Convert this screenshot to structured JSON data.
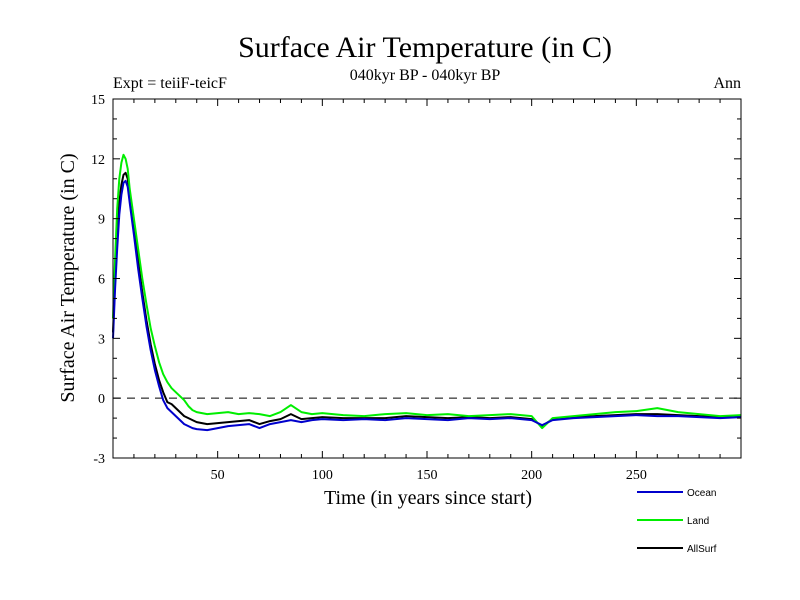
{
  "chart_data": {
    "type": "line",
    "title": "Surface Air Temperature (in C)",
    "subtitle": "040kyr BP - 040kyr BP",
    "left_label": "Expt = teiiF-teicF",
    "right_label": "Ann",
    "xlabel": "Time (in years since start)",
    "ylabel": "Surface Air Temperature (in C)",
    "xlim": [
      0,
      300
    ],
    "ylim": [
      -3,
      15
    ],
    "xticks": [
      50,
      100,
      150,
      200,
      250
    ],
    "yticks": [
      -3,
      0,
      3,
      6,
      9,
      12,
      15
    ],
    "reference_line": 0,
    "legend_position": "bottom-right",
    "series": [
      {
        "name": "Ocean",
        "color": "#0000cc",
        "x": [
          0,
          1,
          2,
          3,
          4,
          5,
          6,
          7,
          8,
          10,
          12,
          14,
          16,
          18,
          20,
          22,
          24,
          26,
          28,
          30,
          32,
          34,
          36,
          38,
          40,
          45,
          50,
          55,
          60,
          65,
          70,
          75,
          80,
          85,
          90,
          95,
          100,
          110,
          120,
          130,
          140,
          150,
          160,
          170,
          180,
          190,
          200,
          205,
          210,
          220,
          230,
          240,
          250,
          260,
          270,
          280,
          290,
          300
        ],
        "values": [
          3,
          5.5,
          7.5,
          9.2,
          10.2,
          10.8,
          10.9,
          10.6,
          9.8,
          8.2,
          6.5,
          5,
          3.6,
          2.4,
          1.4,
          0.6,
          -0.1,
          -0.5,
          -0.7,
          -0.9,
          -1.1,
          -1.3,
          -1.4,
          -1.5,
          -1.55,
          -1.6,
          -1.5,
          -1.4,
          -1.35,
          -1.3,
          -1.5,
          -1.3,
          -1.2,
          -1.1,
          -1.2,
          -1.1,
          -1.05,
          -1.1,
          -1.05,
          -1.1,
          -1.0,
          -1.05,
          -1.1,
          -1.0,
          -1.05,
          -1.0,
          -1.1,
          -1.35,
          -1.1,
          -1.0,
          -0.95,
          -0.9,
          -0.85,
          -0.9,
          -0.9,
          -0.95,
          -1.0,
          -0.95
        ]
      },
      {
        "name": "Land",
        "color": "#00ee00",
        "x": [
          0,
          1,
          2,
          3,
          4,
          5,
          6,
          7,
          8,
          10,
          12,
          14,
          16,
          18,
          20,
          22,
          24,
          26,
          28,
          30,
          32,
          34,
          36,
          38,
          40,
          45,
          50,
          55,
          60,
          65,
          70,
          75,
          80,
          85,
          90,
          95,
          100,
          110,
          120,
          130,
          140,
          150,
          160,
          170,
          180,
          190,
          200,
          205,
          210,
          220,
          230,
          240,
          250,
          260,
          270,
          280,
          290,
          300
        ],
        "values": [
          4,
          7,
          9.5,
          11,
          11.8,
          12.2,
          12,
          11.5,
          10.5,
          9,
          7.5,
          6,
          4.7,
          3.5,
          2.6,
          1.8,
          1.2,
          0.8,
          0.5,
          0.3,
          0.1,
          -0.1,
          -0.4,
          -0.6,
          -0.7,
          -0.8,
          -0.75,
          -0.7,
          -0.8,
          -0.75,
          -0.8,
          -0.9,
          -0.7,
          -0.35,
          -0.7,
          -0.8,
          -0.75,
          -0.85,
          -0.9,
          -0.8,
          -0.75,
          -0.85,
          -0.8,
          -0.9,
          -0.85,
          -0.8,
          -0.9,
          -1.5,
          -1.0,
          -0.9,
          -0.8,
          -0.7,
          -0.65,
          -0.5,
          -0.7,
          -0.8,
          -0.9,
          -0.85
        ]
      },
      {
        "name": "AllSurf",
        "color": "#000000",
        "x": [
          0,
          1,
          2,
          3,
          4,
          5,
          6,
          7,
          8,
          10,
          12,
          14,
          16,
          18,
          20,
          22,
          24,
          26,
          28,
          30,
          32,
          34,
          36,
          38,
          40,
          45,
          50,
          55,
          60,
          65,
          70,
          75,
          80,
          85,
          90,
          95,
          100,
          110,
          120,
          130,
          140,
          150,
          160,
          170,
          180,
          190,
          200,
          205,
          210,
          220,
          230,
          240,
          250,
          260,
          270,
          280,
          290,
          300
        ],
        "values": [
          3.3,
          6,
          8.2,
          9.8,
          10.7,
          11.2,
          11.3,
          11,
          10.2,
          8.6,
          6.9,
          5.3,
          3.9,
          2.7,
          1.7,
          0.9,
          0.3,
          -0.2,
          -0.3,
          -0.5,
          -0.7,
          -0.9,
          -1.0,
          -1.1,
          -1.2,
          -1.3,
          -1.25,
          -1.2,
          -1.15,
          -1.1,
          -1.3,
          -1.15,
          -1.05,
          -0.8,
          -1.05,
          -1.0,
          -0.95,
          -1.0,
          -1.0,
          -1.0,
          -0.9,
          -0.95,
          -1.0,
          -0.95,
          -1.0,
          -0.95,
          -1.05,
          -1.4,
          -1.05,
          -0.95,
          -0.9,
          -0.85,
          -0.8,
          -0.8,
          -0.85,
          -0.9,
          -0.95,
          -0.9
        ]
      }
    ]
  }
}
